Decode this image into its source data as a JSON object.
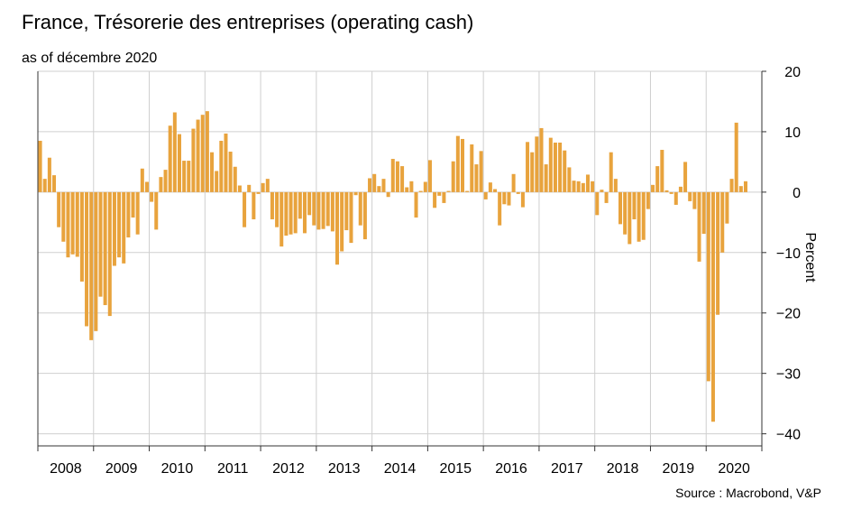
{
  "title": "France, Trésorerie des entreprises (operating cash)",
  "subtitle": "as of décembre 2020",
  "source": "Source : Macrobond, V&P",
  "colors": {
    "bar": "#E8A33D",
    "grid": "#cfcfcf",
    "axis": "#333333"
  },
  "chart_data": {
    "type": "bar",
    "ylabel": "Percent",
    "ylim": [
      -42,
      20
    ],
    "yticks": [
      20,
      10,
      0,
      -10,
      -20,
      -30,
      -40
    ],
    "xlim": [
      2008,
      2021
    ],
    "xtick_labels": [
      "2008",
      "2009",
      "2010",
      "2011",
      "2012",
      "2013",
      "2014",
      "2015",
      "2016",
      "2017",
      "2018",
      "2019",
      "2020"
    ],
    "frequency": "monthly",
    "start": "2008-01",
    "grid": true,
    "values": [
      8.5,
      2.2,
      5.7,
      2.8,
      -5.8,
      -8.2,
      -10.8,
      -10.3,
      -10.7,
      -14.8,
      -22.2,
      -24.5,
      -23.0,
      -17.3,
      -18.7,
      -20.5,
      -12.2,
      -10.8,
      -11.8,
      -7.5,
      -4.2,
      -7.0,
      3.9,
      1.7,
      -1.6,
      -6.2,
      2.5,
      3.7,
      11.0,
      13.2,
      9.6,
      5.2,
      5.2,
      10.5,
      12.0,
      12.8,
      13.4,
      6.6,
      3.5,
      8.5,
      9.7,
      6.7,
      4.2,
      1.1,
      -5.8,
      1.2,
      -4.5,
      -0.3,
      1.5,
      2.2,
      -4.5,
      -5.8,
      -9.0,
      -7.2,
      -7.0,
      -6.8,
      -4.4,
      -6.8,
      -3.8,
      -5.5,
      -6.2,
      -6.1,
      -5.6,
      -6.5,
      -12.0,
      -9.8,
      -6.3,
      -8.4,
      -0.5,
      -5.5,
      -7.8,
      2.3,
      3.0,
      1.0,
      2.2,
      -0.8,
      5.5,
      5.1,
      4.3,
      0.8,
      1.8,
      -4.2,
      0.2,
      1.7,
      5.3,
      -2.6,
      -0.6,
      -1.8,
      0.2,
      5.1,
      9.3,
      8.8,
      0.2,
      7.9,
      4.6,
      6.8,
      -1.2,
      1.6,
      0.5,
      -5.5,
      -2.0,
      -2.2,
      3.0,
      -0.3,
      -2.5,
      8.3,
      6.6,
      9.2,
      10.6,
      4.6,
      9.0,
      8.2,
      8.2,
      6.9,
      4.1,
      1.9,
      1.8,
      1.5,
      2.9,
      1.8,
      -3.8,
      0.4,
      -1.8,
      6.6,
      2.2,
      -5.3,
      -7.0,
      -8.6,
      -4.5,
      -8.2,
      -7.9,
      -2.8,
      1.2,
      4.3,
      7.0,
      0.3,
      -0.3,
      -2.1,
      0.9,
      5.0,
      -1.5,
      -2.8,
      -11.5,
      -6.9,
      -31.3,
      -38.0,
      -20.3,
      -10.0,
      -5.2,
      2.2,
      11.5,
      1.0,
      1.8
    ]
  }
}
